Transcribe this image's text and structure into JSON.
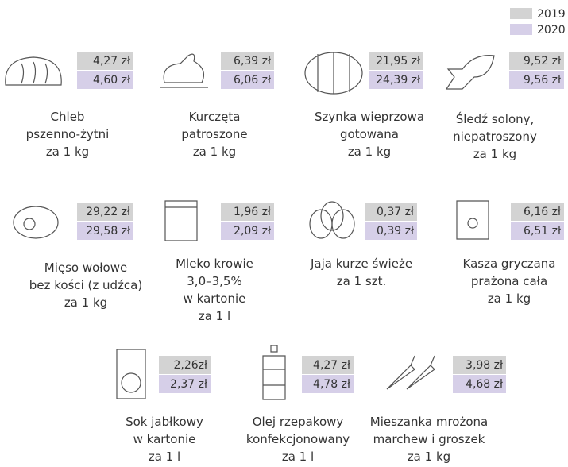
{
  "legend": [
    "2019",
    "2020"
  ],
  "items": [
    {
      "label": [
        "Chleb",
        "pszenno-żytni",
        "za 1 kg"
      ],
      "price_2019": "4,27 zł",
      "price_2020": "4,60 zł"
    },
    {
      "label": [
        "Kurczęta",
        "patroszone",
        "za 1 kg"
      ],
      "price_2019": "6,39 zł",
      "price_2020": "6,06 zł"
    },
    {
      "label": [
        "Szynka wieprzowa",
        "gotowana",
        "za 1 kg"
      ],
      "price_2019": "21,95 zł",
      "price_2020": "24,39 zł"
    },
    {
      "label": [
        "Śledź solony,",
        "niepatroszony",
        "za 1 kg"
      ],
      "price_2019": "9,52 zł",
      "price_2020": "9,56 zł"
    },
    {
      "label": [
        "Mięso wołowe",
        "bez kości (z udźca)",
        "za 1 kg"
      ],
      "price_2019": "29,22 zł",
      "price_2020": "29,58 zł"
    },
    {
      "label": [
        "Mleko krowie",
        "3,0–3,5%",
        "w kartonie",
        "za 1 l"
      ],
      "price_2019": "1,96 zł",
      "price_2020": "2,09 zł"
    },
    {
      "label": [
        "Jaja kurze świeże",
        "za 1 szt."
      ],
      "price_2019": "0,37 zł",
      "price_2020": "0,39 zł"
    },
    {
      "label": [
        "Kasza gryczana",
        "prażona cała",
        "za 1 kg"
      ],
      "price_2019": "6,16 zł",
      "price_2020": "6,51 zł"
    },
    {
      "label": [
        "Sok jabłkowy",
        "w kartonie",
        "za 1 l"
      ],
      "price_2019": "2,26zł",
      "price_2020": "2,37 zł"
    },
    {
      "label": [
        "Olej rzepakowy",
        "konfekcjonowany",
        "za 1 l"
      ],
      "price_2019": "4,27 zł",
      "price_2020": "4,78 zł"
    },
    {
      "label": [
        "Mieszanka mrożona",
        "marchew i groszek",
        "za 1 kg"
      ],
      "price_2019": "3,98 zł",
      "price_2020": "4,68 zł"
    }
  ]
}
